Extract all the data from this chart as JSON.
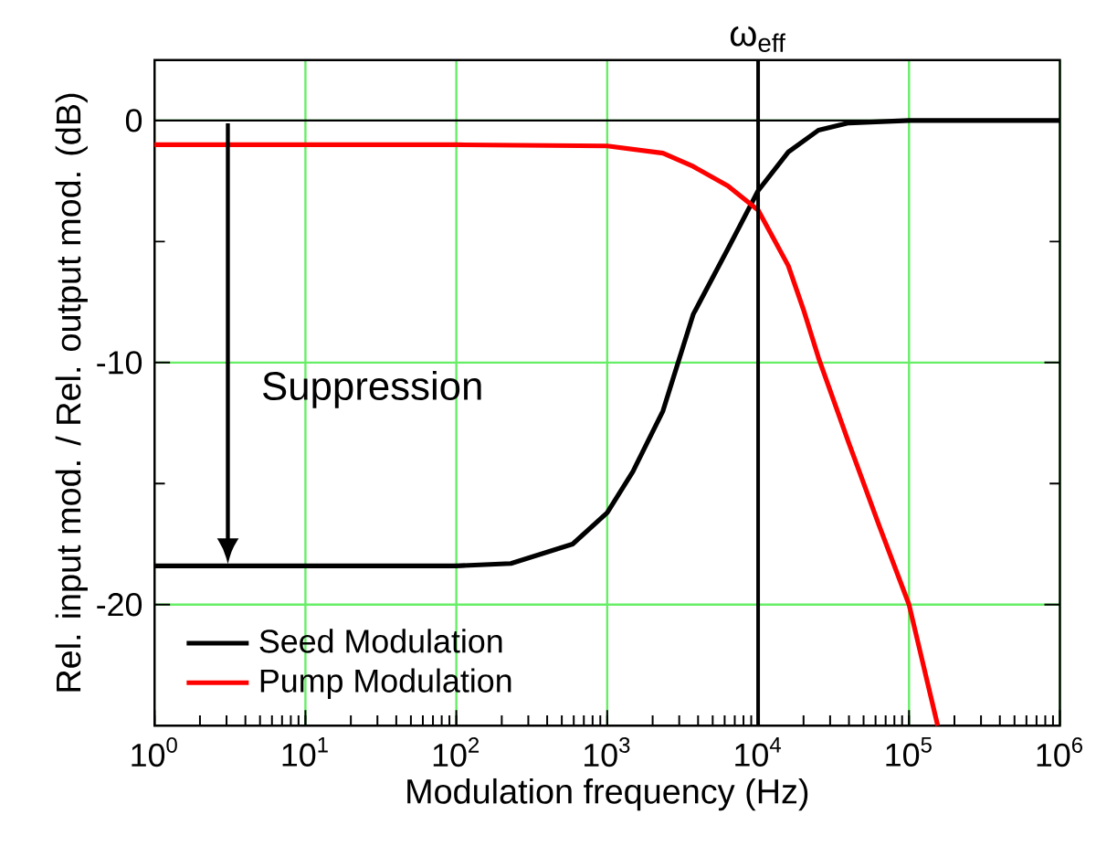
{
  "chart_data": {
    "type": "line",
    "xlabel": "Modulation frequency (Hz)",
    "ylabel": "Rel. input mod. / Rel. output mod. (dB)",
    "log": "x",
    "xlim": [
      1,
      1000000
    ],
    "ylim": [
      -25,
      2.5
    ],
    "xticks": [
      {
        "value": 1,
        "label": "10$^{0}$"
      },
      {
        "value": 10,
        "label": "10$^{1}$"
      },
      {
        "value": 100,
        "label": "10$^{2}$"
      },
      {
        "value": 1000,
        "label": "10$^{3}$"
      },
      {
        "value": 10000,
        "label": "10$^{4}$"
      },
      {
        "value": 100000,
        "label": "10$^{5}$"
      },
      {
        "value": 1000000,
        "label": "10$^{6}$"
      }
    ],
    "yticks": [
      -20,
      -10,
      0
    ],
    "grid": true,
    "legend": "bottom left",
    "marker": "none",
    "line_style": "solid",
    "series": [
      {
        "name": "Seed Modulation",
        "color": "#000000",
        "x": [
          1,
          10,
          100,
          230,
          590,
          1000,
          1480,
          2340,
          2950,
          3720,
          6310,
          10000,
          15850,
          25120,
          39810,
          100000,
          1000000
        ],
        "values": [
          -18.4,
          -18.4,
          -18.4,
          -18.3,
          -17.5,
          -16.2,
          -14.5,
          -12,
          -10,
          -8,
          -5.3,
          -2.9,
          -1.3,
          -0.4,
          -0.1,
          0,
          0
        ]
      },
      {
        "name": "Pump Modulation",
        "color": "#ff0000",
        "x": [
          1,
          100,
          1000,
          2340,
          3720,
          6310,
          10000,
          15850,
          19950,
          25120,
          39810,
          63100,
          100000,
          154900
        ],
        "values": [
          -1,
          -1,
          -1.05,
          -1.35,
          -1.9,
          -2.7,
          -3.7,
          -6,
          -7.8,
          -9.8,
          -13.3,
          -16.7,
          -20,
          -25
        ]
      }
    ],
    "ref_lines": [
      {
        "axis": "x",
        "value": 10000,
        "label": "ω$_{eff}$",
        "color": "#000000"
      },
      {
        "axis": "y",
        "value": 0,
        "color": "#000000"
      }
    ],
    "annotations": [
      "Suppression"
    ]
  }
}
